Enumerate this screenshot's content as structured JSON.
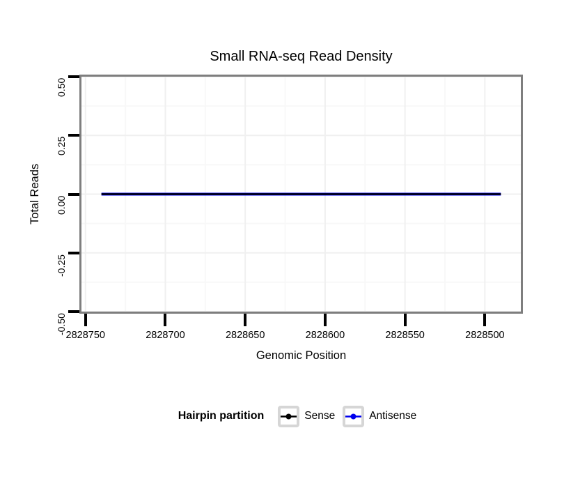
{
  "page": {
    "background": "#ffffff"
  },
  "chart": {
    "title": "Small RNA-seq Read Density",
    "x_axis_label": "Genomic Position",
    "y_axis_label": "Total Reads",
    "x_tick_labels": [
      "2828750",
      "2828700",
      "2828650",
      "2828600",
      "2828550",
      "2828500"
    ],
    "y_tick_labels": [
      "0.50",
      "0.25",
      "0.00",
      "-0.25",
      "-0.50"
    ]
  },
  "legend": {
    "title": "Hairpin partition",
    "items": [
      {
        "label": "Sense",
        "color": "#000000"
      },
      {
        "label": "Antisense",
        "color": "#0000ee"
      }
    ]
  },
  "chart_data": {
    "type": "line",
    "title": "Small RNA-seq Read Density",
    "xlabel": "Genomic Position",
    "ylabel": "Total Reads",
    "x_ticks": [
      2828750,
      2828700,
      2828650,
      2828600,
      2828550,
      2828500
    ],
    "x_reversed": true,
    "xlim": [
      2828752.5,
      2828477.5
    ],
    "y_ticks": [
      0.5,
      0.25,
      0.0,
      -0.25,
      -0.5
    ],
    "ylim": [
      -0.5,
      0.5
    ],
    "grid": {
      "major": true,
      "minor": true
    },
    "legend_position": "bottom",
    "legend_title": "Hairpin partition",
    "series": [
      {
        "name": "Sense",
        "color": "#000000",
        "x": [
          2828740,
          2828490
        ],
        "y": [
          0,
          0
        ]
      },
      {
        "name": "Antisense",
        "color": "#0000ee",
        "x": [
          2828740,
          2828490
        ],
        "y": [
          0,
          0
        ]
      }
    ]
  },
  "colors": {
    "panel_border": "#7e7e7e",
    "grid_major": "#f0f0f0",
    "grid_minor": "#f8f8f8",
    "tick": "#000000",
    "legend_key_border": "#d6d6d6"
  }
}
